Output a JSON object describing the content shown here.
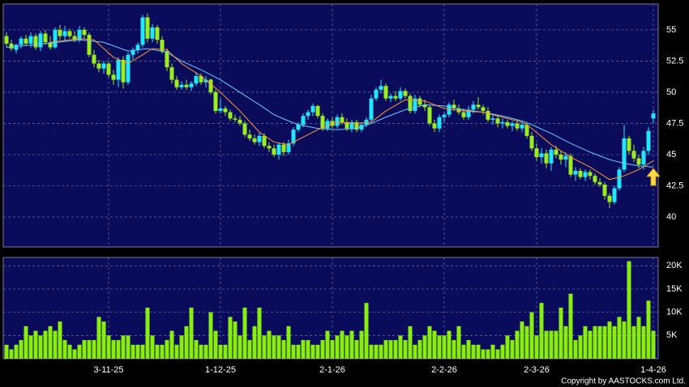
{
  "chart_data": [
    {
      "type": "candlestick",
      "up_color": "#22e5ff",
      "down_color": "#99ee22",
      "ylim": [
        37.6,
        57.07
      ],
      "yticks": [
        40,
        42.5,
        45,
        47.5,
        50,
        52.5,
        55
      ],
      "grid": true,
      "ohlc": [
        [
          54.5,
          54.8,
          53.6,
          53.9
        ],
        [
          53.9,
          54.2,
          53.3,
          53.5
        ],
        [
          53.4,
          53.9,
          53.1,
          53.8
        ],
        [
          53.8,
          54.5,
          53.5,
          54.3
        ],
        [
          54.3,
          54.6,
          53.7,
          53.9
        ],
        [
          53.9,
          54.8,
          53.6,
          54.5
        ],
        [
          54.5,
          54.7,
          53.4,
          53.6
        ],
        [
          53.6,
          54.9,
          53.3,
          54.7
        ],
        [
          54.7,
          55.0,
          53.8,
          54.0
        ],
        [
          54.0,
          54.5,
          53.4,
          53.6
        ],
        [
          53.6,
          55.2,
          53.5,
          55.0
        ],
        [
          55.0,
          55.4,
          54.2,
          54.5
        ],
        [
          54.5,
          55.3,
          54.1,
          54.9
        ],
        [
          54.9,
          55.1,
          54.3,
          54.5
        ],
        [
          54.5,
          54.9,
          54.0,
          54.2
        ],
        [
          54.2,
          55.3,
          54.0,
          55.0
        ],
        [
          55.0,
          55.2,
          54.3,
          54.6
        ],
        [
          54.6,
          54.8,
          52.8,
          53.0
        ],
        [
          53.0,
          53.4,
          52.0,
          52.3
        ],
        [
          52.3,
          52.6,
          51.6,
          51.9
        ],
        [
          51.9,
          52.5,
          51.5,
          52.3
        ],
        [
          52.3,
          52.5,
          51.2,
          51.4
        ],
        [
          51.4,
          51.8,
          50.6,
          51.0
        ],
        [
          51.0,
          52.8,
          50.4,
          52.6
        ],
        [
          52.6,
          52.9,
          50.3,
          50.8
        ],
        [
          50.8,
          53.2,
          50.6,
          53.0
        ],
        [
          53.0,
          53.6,
          52.6,
          53.4
        ],
        [
          53.4,
          54.0,
          53.1,
          53.8
        ],
        [
          53.8,
          56.2,
          53.6,
          56.0
        ],
        [
          56.0,
          56.3,
          54.0,
          54.3
        ],
        [
          54.3,
          55.5,
          54.0,
          55.2
        ],
        [
          55.2,
          55.4,
          53.9,
          54.2
        ],
        [
          54.2,
          54.5,
          53.1,
          53.3
        ],
        [
          53.3,
          53.5,
          51.7,
          52.0
        ],
        [
          52.0,
          52.3,
          50.7,
          51.0
        ],
        [
          51.0,
          51.3,
          50.2,
          50.4
        ],
        [
          50.4,
          50.9,
          50.2,
          50.6
        ],
        [
          50.6,
          51.0,
          50.2,
          50.4
        ],
        [
          50.4,
          50.9,
          50.1,
          50.7
        ],
        [
          50.7,
          51.6,
          50.5,
          51.3
        ],
        [
          51.3,
          51.5,
          50.6,
          50.8
        ],
        [
          50.8,
          51.3,
          50.4,
          51.0
        ],
        [
          51.0,
          51.1,
          49.8,
          50.0
        ],
        [
          50.0,
          50.2,
          48.3,
          48.5
        ],
        [
          48.5,
          49.5,
          48.3,
          48.7
        ],
        [
          48.7,
          48.9,
          48.1,
          48.4
        ],
        [
          48.4,
          48.6,
          47.7,
          47.9
        ],
        [
          47.9,
          48.2,
          47.6,
          47.8
        ],
        [
          47.8,
          48.1,
          47.3,
          47.5
        ],
        [
          47.5,
          47.7,
          46.4,
          46.6
        ],
        [
          46.6,
          47.0,
          46.1,
          46.3
        ],
        [
          46.3,
          46.6,
          45.8,
          46.0
        ],
        [
          46.0,
          46.8,
          45.7,
          46.5
        ],
        [
          46.5,
          46.7,
          45.5,
          45.7
        ],
        [
          45.7,
          46.0,
          45.2,
          45.5
        ],
        [
          45.5,
          45.8,
          44.8,
          45.0
        ],
        [
          45.0,
          46.0,
          44.6,
          45.8
        ],
        [
          45.8,
          46.0,
          44.9,
          45.2
        ],
        [
          45.2,
          46.2,
          45.0,
          45.9
        ],
        [
          45.9,
          47.2,
          45.7,
          47.0
        ],
        [
          47.0,
          47.6,
          46.8,
          47.4
        ],
        [
          47.4,
          48.3,
          47.2,
          48.1
        ],
        [
          48.1,
          48.6,
          47.8,
          48.4
        ],
        [
          48.4,
          49.1,
          48.1,
          48.9
        ],
        [
          48.9,
          49.0,
          47.9,
          48.1
        ],
        [
          48.1,
          48.3,
          46.9,
          47.1
        ],
        [
          47.1,
          47.9,
          46.9,
          47.7
        ],
        [
          47.7,
          48.0,
          47.1,
          47.3
        ],
        [
          47.3,
          48.2,
          47.1,
          48.0
        ],
        [
          48.0,
          48.3,
          47.4,
          47.6
        ],
        [
          47.6,
          47.9,
          46.9,
          47.1
        ],
        [
          47.1,
          47.8,
          46.8,
          47.6
        ],
        [
          47.6,
          47.8,
          46.8,
          47.0
        ],
        [
          47.0,
          47.6,
          46.8,
          47.4
        ],
        [
          47.4,
          48.0,
          47.2,
          47.8
        ],
        [
          47.8,
          49.8,
          47.6,
          49.5
        ],
        [
          49.5,
          50.4,
          49.3,
          50.2
        ],
        [
          50.2,
          51.0,
          49.9,
          50.5
        ],
        [
          50.5,
          50.7,
          49.3,
          49.5
        ],
        [
          49.5,
          49.9,
          49.2,
          49.7
        ],
        [
          49.7,
          50.1,
          49.3,
          49.5
        ],
        [
          49.5,
          50.4,
          49.3,
          50.1
        ],
        [
          50.1,
          50.3,
          49.5,
          49.7
        ],
        [
          49.7,
          49.9,
          48.3,
          48.5
        ],
        [
          48.5,
          49.8,
          48.3,
          49.5
        ],
        [
          49.5,
          49.7,
          48.8,
          49.0
        ],
        [
          49.0,
          49.4,
          48.5,
          48.8
        ],
        [
          48.8,
          49.0,
          47.3,
          47.5
        ],
        [
          47.5,
          47.8,
          46.8,
          47.1
        ],
        [
          47.1,
          48.2,
          46.8,
          48.0
        ],
        [
          48.0,
          48.4,
          47.6,
          48.2
        ],
        [
          48.2,
          49.2,
          48.0,
          49.0
        ],
        [
          49.0,
          49.4,
          48.5,
          48.7
        ],
        [
          48.7,
          49.0,
          48.2,
          48.4
        ],
        [
          48.4,
          48.7,
          47.8,
          48.0
        ],
        [
          48.0,
          48.9,
          47.8,
          48.6
        ],
        [
          48.6,
          49.3,
          48.3,
          49.0
        ],
        [
          49.0,
          49.6,
          48.6,
          48.8
        ],
        [
          48.8,
          49.0,
          48.2,
          48.5
        ],
        [
          48.5,
          48.8,
          47.6,
          47.8
        ],
        [
          47.8,
          48.2,
          47.4,
          47.9
        ],
        [
          47.9,
          48.1,
          47.2,
          47.5
        ],
        [
          47.5,
          47.9,
          47.1,
          47.6
        ],
        [
          47.6,
          47.8,
          47.1,
          47.3
        ],
        [
          47.3,
          47.7,
          46.9,
          47.5
        ],
        [
          47.5,
          47.8,
          46.9,
          47.1
        ],
        [
          47.1,
          47.6,
          46.8,
          47.4
        ],
        [
          47.4,
          47.6,
          46.3,
          46.5
        ],
        [
          46.5,
          46.8,
          45.3,
          45.5
        ],
        [
          45.5,
          45.9,
          44.5,
          44.8
        ],
        [
          44.8,
          45.5,
          44.3,
          45.1
        ],
        [
          45.1,
          45.4,
          43.9,
          44.3
        ],
        [
          44.3,
          45.6,
          43.7,
          45.4
        ],
        [
          45.4,
          45.7,
          44.7,
          45.0
        ],
        [
          45.0,
          45.3,
          44.2,
          44.6
        ],
        [
          44.6,
          45.2,
          44.0,
          44.9
        ],
        [
          44.9,
          45.1,
          43.2,
          43.4
        ],
        [
          43.4,
          44.0,
          42.9,
          43.7
        ],
        [
          43.7,
          43.9,
          43.0,
          43.2
        ],
        [
          43.2,
          43.8,
          42.9,
          43.6
        ],
        [
          43.6,
          43.8,
          43.0,
          43.3
        ],
        [
          43.3,
          43.5,
          42.6,
          42.8
        ],
        [
          42.8,
          43.1,
          42.4,
          42.6
        ],
        [
          42.6,
          42.8,
          41.4,
          41.7
        ],
        [
          41.7,
          41.9,
          40.7,
          41.2
        ],
        [
          41.2,
          42.5,
          41.0,
          42.3
        ],
        [
          42.3,
          44.0,
          42.1,
          43.8
        ],
        [
          43.8,
          47.4,
          43.6,
          46.3
        ],
        [
          46.3,
          46.5,
          45.0,
          45.3
        ],
        [
          45.3,
          45.8,
          44.4,
          44.7
        ],
        [
          44.7,
          45.0,
          43.9,
          44.2
        ],
        [
          44.2,
          45.6,
          43.8,
          45.3
        ],
        [
          45.3,
          47.2,
          45.0,
          46.9
        ],
        [
          47.9,
          48.6,
          47.5,
          48.3
        ]
      ],
      "ma": [
        {
          "color": "#66ccff",
          "x": [
            0,
            8,
            15,
            20,
            25,
            29,
            33,
            36,
            40,
            44,
            48,
            52,
            55,
            58,
            60,
            64,
            68,
            72,
            75,
            78,
            82,
            86,
            90,
            94,
            98,
            102,
            106,
            108,
            112,
            116,
            120,
            124,
            127,
            130,
            133
          ],
          "values": [
            53.6,
            53.9,
            54.2,
            54.0,
            53.3,
            53.5,
            53.2,
            52.5,
            51.8,
            51.0,
            50.0,
            49.0,
            48.2,
            47.7,
            47.4,
            47.1,
            47.0,
            47.1,
            47.5,
            48.0,
            48.6,
            49.0,
            48.9,
            48.6,
            48.4,
            48.1,
            47.7,
            47.4,
            46.7,
            45.9,
            45.2,
            44.6,
            44.3,
            44.1,
            44.0
          ]
        },
        {
          "color": "#ff9933",
          "x": [
            9,
            15,
            18,
            22,
            25,
            28,
            30,
            33,
            36,
            40,
            44,
            48,
            52,
            55,
            58,
            60,
            64,
            68,
            72,
            75,
            78,
            82,
            86,
            90,
            94,
            98,
            102,
            106,
            108,
            112,
            116,
            120,
            124,
            127,
            130,
            133
          ],
          "values": [
            54.0,
            54.3,
            54.2,
            52.8,
            52.3,
            53.0,
            53.5,
            53.4,
            52.3,
            51.3,
            50.0,
            48.5,
            46.8,
            46.0,
            45.8,
            46.2,
            47.0,
            47.6,
            47.5,
            47.6,
            48.5,
            49.4,
            49.3,
            48.7,
            48.5,
            48.4,
            48.0,
            47.6,
            47.1,
            45.8,
            44.8,
            44.0,
            43.0,
            43.3,
            43.8,
            44.5
          ]
        }
      ]
    },
    {
      "type": "bar",
      "color": "#88ee11",
      "ylim": [
        0,
        21800
      ],
      "grid": true,
      "yticks": [
        {
          "value": 5000,
          "label": "5K"
        },
        {
          "value": 10000,
          "label": "10K"
        },
        {
          "value": 15000,
          "label": "15K"
        },
        {
          "value": 20000,
          "label": "20K"
        }
      ],
      "xticks": [
        {
          "value": 21,
          "label": "3-11-25"
        },
        {
          "value": 44,
          "label": "1-12-25"
        },
        {
          "value": 67,
          "label": "2-1-26"
        },
        {
          "value": 90,
          "label": "2-2-26"
        },
        {
          "value": 109,
          "label": "2-3-26"
        },
        {
          "value": 133,
          "label": "1-4-26"
        }
      ],
      "values": [
        3000,
        2000,
        3000,
        4000,
        7000,
        5000,
        6000,
        5000,
        6000,
        7000,
        6000,
        8000,
        4000,
        3000,
        2000,
        3000,
        4000,
        4000,
        4000,
        9000,
        8000,
        5000,
        4000,
        4000,
        5000,
        5000,
        3000,
        3000,
        3000,
        11000,
        5000,
        3000,
        3000,
        4000,
        6000,
        3000,
        5000,
        7000,
        11000,
        4000,
        3000,
        3000,
        10000,
        6000,
        3000,
        3000,
        9000,
        8000,
        5000,
        11000,
        4000,
        7000,
        11000,
        5000,
        6000,
        5000,
        5000,
        4000,
        7000,
        3000,
        3000,
        4000,
        4000,
        3000,
        3000,
        4000,
        6000,
        4000,
        5000,
        6000,
        5000,
        6000,
        4000,
        6000,
        12000,
        3000,
        3000,
        3000,
        4000,
        4000,
        4000,
        5000,
        4000,
        7000,
        3000,
        4000,
        5000,
        7000,
        6000,
        5000,
        5000,
        6000,
        4000,
        7000,
        3000,
        4000,
        3000,
        3000,
        2000,
        2000,
        3000,
        2000,
        3000,
        5000,
        4000,
        6000,
        8000,
        7000,
        10000,
        5000,
        12000,
        6000,
        6000,
        6000,
        11000,
        7000,
        14000,
        4000,
        5000,
        7000,
        6000,
        7000,
        7000,
        7000,
        8000,
        7000,
        9000,
        8000,
        21000,
        7000,
        9000,
        7000,
        12500,
        6000
      ]
    }
  ],
  "footer": {
    "copyright": "Copyright by AASTOCKS.com Ltd."
  }
}
